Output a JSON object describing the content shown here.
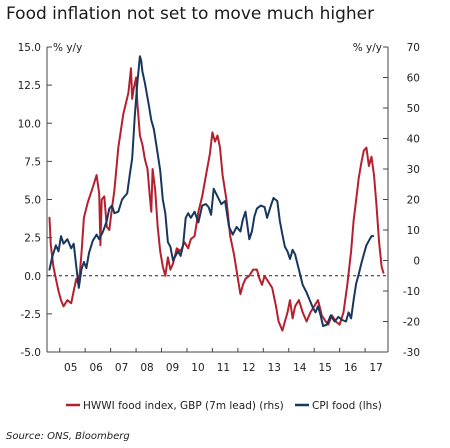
{
  "chart_data": {
    "type": "line",
    "title": "Food inflation not set to move much higher",
    "source": "Source: ONS, Bloomberg",
    "left_axis": {
      "unit_label": "% y/y",
      "range": [
        -5,
        15
      ],
      "ticks": [
        15,
        12.5,
        10,
        7.5,
        5,
        2.5,
        0,
        -2.5,
        -5
      ],
      "tick_labels": [
        "15.0",
        "12.5",
        "10.0",
        "7.5",
        "5.0",
        "2.5",
        "0.0",
        "-2.5",
        "-5.0"
      ]
    },
    "right_axis": {
      "unit_label": "% y/y",
      "range": [
        -30,
        70
      ],
      "ticks": [
        70,
        60,
        50,
        40,
        30,
        20,
        10,
        0,
        -10,
        -20,
        -30
      ],
      "tick_labels": [
        "70",
        "60",
        "50",
        "40",
        "30",
        "20",
        "10",
        "0",
        "-10",
        "-20",
        "-30"
      ]
    },
    "x_axis": {
      "range": [
        2004.5,
        2017.9
      ],
      "ticks": [
        2005,
        2006,
        2007,
        2008,
        2009,
        2010,
        2011,
        2012,
        2013,
        2014,
        2015,
        2016,
        2017
      ],
      "tick_labels": [
        "05",
        "06",
        "07",
        "08",
        "09",
        "10",
        "11",
        "12",
        "13",
        "14",
        "15",
        "16",
        "17"
      ]
    },
    "zero_line": "dashed",
    "legend_position": "bottom",
    "series": [
      {
        "name": "HWWI food index, GBP (7m lead) (rhs)",
        "axis": "right",
        "color": "#b5202e",
        "points": [
          [
            2004.6,
            14
          ],
          [
            2004.65,
            5
          ],
          [
            2004.75,
            -2
          ],
          [
            2004.85,
            -6
          ],
          [
            2004.95,
            -10
          ],
          [
            2005.05,
            -13
          ],
          [
            2005.15,
            -15
          ],
          [
            2005.3,
            -13
          ],
          [
            2005.45,
            -14
          ],
          [
            2005.55,
            -10
          ],
          [
            2005.65,
            -6
          ],
          [
            2005.75,
            -8
          ],
          [
            2005.85,
            2
          ],
          [
            2005.95,
            14
          ],
          [
            2006.1,
            19
          ],
          [
            2006.3,
            24
          ],
          [
            2006.45,
            28
          ],
          [
            2006.55,
            22
          ],
          [
            2006.6,
            5
          ],
          [
            2006.65,
            20
          ],
          [
            2006.75,
            21
          ],
          [
            2006.85,
            11
          ],
          [
            2006.95,
            10
          ],
          [
            2007.05,
            17
          ],
          [
            2007.15,
            23
          ],
          [
            2007.3,
            37
          ],
          [
            2007.5,
            48
          ],
          [
            2007.7,
            55
          ],
          [
            2007.8,
            63
          ],
          [
            2007.85,
            53
          ],
          [
            2007.9,
            56
          ],
          [
            2008.0,
            60
          ],
          [
            2008.05,
            52
          ],
          [
            2008.15,
            41
          ],
          [
            2008.25,
            38
          ],
          [
            2008.35,
            33
          ],
          [
            2008.45,
            30
          ],
          [
            2008.55,
            20
          ],
          [
            2008.6,
            16
          ],
          [
            2008.65,
            30
          ],
          [
            2008.75,
            23
          ],
          [
            2008.85,
            11
          ],
          [
            2008.95,
            3
          ],
          [
            2009.05,
            -2
          ],
          [
            2009.15,
            -5
          ],
          [
            2009.25,
            1
          ],
          [
            2009.35,
            -3
          ],
          [
            2009.45,
            -1
          ],
          [
            2009.6,
            4
          ],
          [
            2009.75,
            3
          ],
          [
            2009.9,
            6
          ],
          [
            2010.05,
            4
          ],
          [
            2010.15,
            7
          ],
          [
            2010.3,
            8
          ],
          [
            2010.45,
            16
          ],
          [
            2010.6,
            21
          ],
          [
            2010.75,
            28
          ],
          [
            2010.9,
            35
          ],
          [
            2011.0,
            42
          ],
          [
            2011.1,
            39
          ],
          [
            2011.2,
            41
          ],
          [
            2011.3,
            37
          ],
          [
            2011.4,
            28
          ],
          [
            2011.55,
            20
          ],
          [
            2011.7,
            8
          ],
          [
            2011.85,
            2
          ],
          [
            2012.0,
            -6
          ],
          [
            2012.1,
            -11
          ],
          [
            2012.2,
            -8
          ],
          [
            2012.3,
            -6
          ],
          [
            2012.45,
            -5
          ],
          [
            2012.6,
            -3
          ],
          [
            2012.75,
            -3
          ],
          [
            2012.85,
            -6
          ],
          [
            2012.95,
            -8
          ],
          [
            2013.05,
            -5
          ],
          [
            2013.2,
            -7
          ],
          [
            2013.35,
            -9
          ],
          [
            2013.5,
            -15
          ],
          [
            2013.6,
            -20
          ],
          [
            2013.75,
            -23
          ],
          [
            2013.85,
            -20
          ],
          [
            2013.95,
            -17
          ],
          [
            2014.05,
            -13
          ],
          [
            2014.15,
            -19
          ],
          [
            2014.25,
            -15
          ],
          [
            2014.4,
            -13
          ],
          [
            2014.55,
            -17
          ],
          [
            2014.7,
            -20
          ],
          [
            2014.85,
            -17
          ],
          [
            2015.0,
            -15
          ],
          [
            2015.15,
            -13
          ],
          [
            2015.3,
            -18
          ],
          [
            2015.45,
            -20
          ],
          [
            2015.55,
            -21
          ],
          [
            2015.7,
            -18
          ],
          [
            2015.85,
            -20
          ],
          [
            2016.0,
            -21
          ],
          [
            2016.15,
            -17
          ],
          [
            2016.3,
            -8
          ],
          [
            2016.45,
            3
          ],
          [
            2016.55,
            13
          ],
          [
            2016.65,
            20
          ],
          [
            2016.75,
            27
          ],
          [
            2016.85,
            32
          ],
          [
            2016.95,
            36
          ],
          [
            2017.05,
            37
          ],
          [
            2017.15,
            31
          ],
          [
            2017.25,
            34
          ],
          [
            2017.35,
            28
          ],
          [
            2017.45,
            18
          ],
          [
            2017.55,
            6
          ],
          [
            2017.65,
            -2
          ],
          [
            2017.72,
            -4
          ]
        ]
      },
      {
        "name": "CPI food (lhs)",
        "axis": "left",
        "color": "#17375e",
        "points": [
          [
            2004.6,
            0.4
          ],
          [
            2004.7,
            1.2
          ],
          [
            2004.85,
            2.0
          ],
          [
            2004.95,
            1.6
          ],
          [
            2005.05,
            2.6
          ],
          [
            2005.15,
            2.1
          ],
          [
            2005.3,
            2.4
          ],
          [
            2005.45,
            1.8
          ],
          [
            2005.55,
            2.1
          ],
          [
            2005.65,
            0.6
          ],
          [
            2005.75,
            -0.8
          ],
          [
            2005.85,
            0.4
          ],
          [
            2005.95,
            0.9
          ],
          [
            2006.05,
            0.5
          ],
          [
            2006.15,
            1.5
          ],
          [
            2006.3,
            2.3
          ],
          [
            2006.45,
            2.7
          ],
          [
            2006.55,
            2.4
          ],
          [
            2006.7,
            2.9
          ],
          [
            2006.85,
            3.6
          ],
          [
            2006.95,
            4.4
          ],
          [
            2007.05,
            4.6
          ],
          [
            2007.15,
            4.1
          ],
          [
            2007.3,
            4.2
          ],
          [
            2007.45,
            5.0
          ],
          [
            2007.55,
            5.2
          ],
          [
            2007.65,
            5.4
          ],
          [
            2007.75,
            6.6
          ],
          [
            2007.85,
            7.7
          ],
          [
            2007.95,
            10.5
          ],
          [
            2008.05,
            12.6
          ],
          [
            2008.15,
            14.4
          ],
          [
            2008.2,
            14.1
          ],
          [
            2008.25,
            13.4
          ],
          [
            2008.35,
            12.6
          ],
          [
            2008.5,
            11.2
          ],
          [
            2008.6,
            10.2
          ],
          [
            2008.7,
            9.6
          ],
          [
            2008.85,
            8.0
          ],
          [
            2008.95,
            6.9
          ],
          [
            2009.05,
            5.0
          ],
          [
            2009.15,
            4.1
          ],
          [
            2009.25,
            2.2
          ],
          [
            2009.35,
            1.9
          ],
          [
            2009.45,
            1.0
          ],
          [
            2009.55,
            1.3
          ],
          [
            2009.65,
            1.6
          ],
          [
            2009.75,
            1.3
          ],
          [
            2009.85,
            2.0
          ],
          [
            2009.95,
            3.8
          ],
          [
            2010.05,
            4.1
          ],
          [
            2010.15,
            3.8
          ],
          [
            2010.3,
            4.2
          ],
          [
            2010.45,
            3.5
          ],
          [
            2010.6,
            4.6
          ],
          [
            2010.75,
            4.7
          ],
          [
            2010.85,
            4.5
          ],
          [
            2010.95,
            4.0
          ],
          [
            2011.05,
            5.7
          ],
          [
            2011.2,
            5.2
          ],
          [
            2011.35,
            4.7
          ],
          [
            2011.5,
            4.9
          ],
          [
            2011.65,
            3.2
          ],
          [
            2011.8,
            2.7
          ],
          [
            2011.95,
            3.2
          ],
          [
            2012.1,
            2.9
          ],
          [
            2012.2,
            3.7
          ],
          [
            2012.3,
            4.2
          ],
          [
            2012.45,
            2.4
          ],
          [
            2012.55,
            2.9
          ],
          [
            2012.65,
            3.9
          ],
          [
            2012.75,
            4.4
          ],
          [
            2012.9,
            4.6
          ],
          [
            2013.05,
            4.5
          ],
          [
            2013.15,
            3.8
          ],
          [
            2013.3,
            4.6
          ],
          [
            2013.4,
            5.1
          ],
          [
            2013.55,
            4.9
          ],
          [
            2013.65,
            3.6
          ],
          [
            2013.75,
            2.7
          ],
          [
            2013.85,
            1.9
          ],
          [
            2013.95,
            1.6
          ],
          [
            2014.05,
            1.1
          ],
          [
            2014.15,
            1.7
          ],
          [
            2014.25,
            1.4
          ],
          [
            2014.4,
            0.4
          ],
          [
            2014.55,
            -0.6
          ],
          [
            2014.7,
            -1.1
          ],
          [
            2014.85,
            -1.7
          ],
          [
            2014.95,
            -2.1
          ],
          [
            2015.05,
            -2.4
          ],
          [
            2015.15,
            -2.0
          ],
          [
            2015.25,
            -2.6
          ],
          [
            2015.35,
            -3.3
          ],
          [
            2015.5,
            -3.2
          ],
          [
            2015.65,
            -2.6
          ],
          [
            2015.8,
            -3.0
          ],
          [
            2015.95,
            -2.7
          ],
          [
            2016.1,
            -2.9
          ],
          [
            2016.25,
            -3.0
          ],
          [
            2016.35,
            -2.4
          ],
          [
            2016.45,
            -2.8
          ],
          [
            2016.55,
            -1.6
          ],
          [
            2016.65,
            -0.5
          ],
          [
            2016.75,
            0.1
          ],
          [
            2016.85,
            0.8
          ],
          [
            2016.95,
            1.4
          ],
          [
            2017.05,
            2.0
          ],
          [
            2017.15,
            2.3
          ],
          [
            2017.25,
            2.6
          ],
          [
            2017.32,
            2.6
          ]
        ]
      }
    ]
  }
}
